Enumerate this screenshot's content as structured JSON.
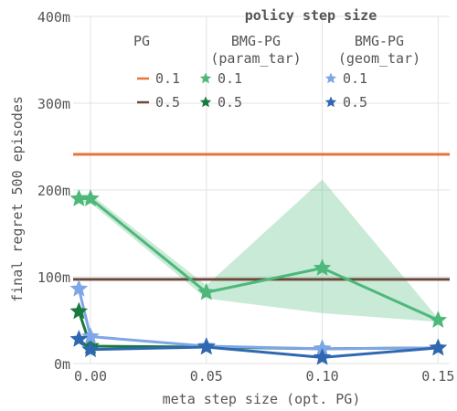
{
  "chart_data": {
    "type": "line",
    "xlabel": "meta step size (opt. PG)",
    "ylabel": "final regret 500 episodes",
    "xlim": [
      -0.0075,
      0.155
    ],
    "ylim": [
      0,
      400
    ],
    "xticks": [
      0.0,
      0.05,
      0.1,
      0.15
    ],
    "xtick_labels": [
      "0.00",
      "0.05",
      "0.10",
      "0.15"
    ],
    "yticks": [
      0,
      100,
      200,
      300,
      400
    ],
    "ytick_labels": [
      "0m",
      "100m",
      "200m",
      "300m",
      "400m"
    ],
    "grid": true,
    "legend": {
      "title": "policy step size",
      "placement": "top-right",
      "headers": [
        "PG",
        "BMG-PG\n(param_tar)",
        "BMG-PG\n(geom_tar)"
      ]
    },
    "hlines": [
      {
        "name": "0.1",
        "group": "PG",
        "y": 241,
        "color": "#e8743b"
      },
      {
        "name": "0.5",
        "group": "PG",
        "y": 97,
        "color": "#6b4a3c"
      }
    ],
    "series": [
      {
        "name": "0.1",
        "group": "BMG-PG (param_tar)",
        "color": "#4db87a",
        "x": [
          -0.005,
          0.0,
          0.05,
          0.1,
          0.15
        ],
        "values": [
          190,
          190,
          82,
          110,
          50
        ],
        "band_upper": [
          195,
          195,
          90,
          212,
          52
        ],
        "band_lower": [
          185,
          185,
          75,
          58,
          48
        ]
      },
      {
        "name": "0.5",
        "group": "BMG-PG (param_tar)",
        "color": "#1a7a3e",
        "x": [
          -0.005,
          0.0,
          0.05,
          0.1,
          0.15
        ],
        "values": [
          60,
          20,
          19,
          17,
          18
        ]
      },
      {
        "name": "0.1",
        "group": "BMG-PG (geom_tar)",
        "color": "#7fa6e6",
        "x": [
          -0.005,
          0.0,
          0.05,
          0.1,
          0.15
        ],
        "values": [
          86,
          31,
          20,
          17,
          18
        ]
      },
      {
        "name": "0.5",
        "group": "BMG-PG (geom_tar)",
        "color": "#2f68b0",
        "x": [
          -0.005,
          0.0,
          0.05,
          0.1,
          0.15
        ],
        "values": [
          28,
          16,
          19,
          7,
          18
        ]
      }
    ]
  }
}
